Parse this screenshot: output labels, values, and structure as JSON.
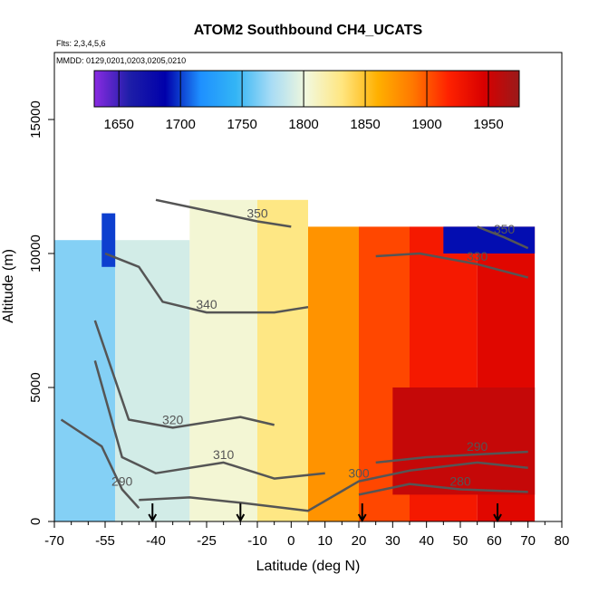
{
  "chart_data": {
    "type": "heatmap",
    "title": "ATOM2 Southbound CH4_UCATS",
    "annotations": {
      "flights": "Flts: 2,3,4,5,6",
      "dates": "MMDD: 0129,0201,0203,0205,0210"
    },
    "xlabel": "Latitude (deg N)",
    "ylabel": "Altitude (m)",
    "xlim": [
      -70,
      80
    ],
    "ylim": [
      0,
      17500
    ],
    "x_ticks": [
      -70,
      -55,
      -40,
      -25,
      -10,
      0,
      10,
      20,
      30,
      40,
      50,
      60,
      70,
      80
    ],
    "x_minor_ticks": [
      -65,
      -60,
      -50,
      -45,
      -35,
      -30,
      -20,
      -15,
      -5,
      5,
      15,
      25,
      35,
      45,
      55,
      65,
      75
    ],
    "y_ticks": [
      0,
      5000,
      10000,
      15000
    ],
    "colorbar": {
      "ticks": [
        1650,
        1700,
        1750,
        1800,
        1850,
        1900,
        1950
      ],
      "range": [
        1630,
        1975
      ],
      "colors": [
        "#8a2be2",
        "#1e1ea8",
        "#0000aa",
        "#1e90ff",
        "#33b5f5",
        "#a8dcf5",
        "#f2f8dc",
        "#ffe680",
        "#ffb000",
        "#ff7800",
        "#ff2200",
        "#d80000",
        "#9a1a1a"
      ]
    },
    "fields": [
      {
        "x_range": [
          -70,
          -52
        ],
        "y_range": [
          0,
          10500
        ],
        "value": 1765
      },
      {
        "x_range": [
          -52,
          -30
        ],
        "y_range": [
          0,
          10500
        ],
        "value": 1790
      },
      {
        "x_range": [
          -30,
          -10
        ],
        "y_range": [
          0,
          12000
        ],
        "value": 1805
      },
      {
        "x_range": [
          -10,
          5
        ],
        "y_range": [
          0,
          12000
        ],
        "value": 1830
      },
      {
        "x_range": [
          5,
          20
        ],
        "y_range": [
          0,
          11000
        ],
        "value": 1875
      },
      {
        "x_range": [
          20,
          35
        ],
        "y_range": [
          0,
          11000
        ],
        "value": 1905
      },
      {
        "x_range": [
          35,
          55
        ],
        "y_range": [
          0,
          11000
        ],
        "value": 1925
      },
      {
        "x_range": [
          55,
          72
        ],
        "y_range": [
          0,
          11000
        ],
        "value": 1940
      },
      {
        "x_range": [
          -56,
          -52
        ],
        "y_range": [
          9500,
          11500
        ],
        "value": 1700
      },
      {
        "x_range": [
          30,
          72
        ],
        "y_range": [
          1000,
          5000
        ],
        "value": 1955
      },
      {
        "x_range": [
          45,
          72
        ],
        "y_range": [
          10000,
          11000
        ],
        "value": 1690
      }
    ],
    "contours": [
      {
        "label": "280",
        "points": [
          [
            20,
            1000
          ],
          [
            35,
            1400
          ],
          [
            50,
            1200
          ],
          [
            70,
            1100
          ]
        ]
      },
      {
        "label": "290",
        "points": [
          [
            -68,
            3800
          ],
          [
            -56,
            2800
          ],
          [
            -50,
            1200
          ],
          [
            -45,
            500
          ]
        ]
      },
      {
        "label": "290",
        "points": [
          [
            25,
            2200
          ],
          [
            40,
            2400
          ],
          [
            55,
            2500
          ],
          [
            70,
            2600
          ]
        ]
      },
      {
        "label": "300",
        "points": [
          [
            -45,
            800
          ],
          [
            -30,
            900
          ],
          [
            -15,
            700
          ],
          [
            5,
            400
          ],
          [
            20,
            1500
          ],
          [
            35,
            1900
          ],
          [
            55,
            2200
          ],
          [
            70,
            2000
          ]
        ]
      },
      {
        "label": "310",
        "points": [
          [
            -58,
            6000
          ],
          [
            -50,
            2400
          ],
          [
            -40,
            1800
          ],
          [
            -20,
            2200
          ],
          [
            -5,
            1600
          ],
          [
            10,
            1800
          ]
        ]
      },
      {
        "label": "320",
        "points": [
          [
            -58,
            7500
          ],
          [
            -48,
            3800
          ],
          [
            -35,
            3500
          ],
          [
            -15,
            3900
          ],
          [
            -5,
            3600
          ]
        ]
      },
      {
        "label": "330",
        "points": [
          [
            25,
            9900
          ],
          [
            38,
            10000
          ],
          [
            55,
            9600
          ],
          [
            70,
            9100
          ]
        ]
      },
      {
        "label": "340",
        "points": [
          [
            -55,
            10000
          ],
          [
            -45,
            9500
          ],
          [
            -38,
            8200
          ],
          [
            -25,
            7800
          ],
          [
            -5,
            7800
          ],
          [
            5,
            8000
          ]
        ]
      },
      {
        "label": "350",
        "points": [
          [
            -40,
            12000
          ],
          [
            -25,
            11600
          ],
          [
            -10,
            11200
          ],
          [
            0,
            11000
          ]
        ]
      },
      {
        "label": "350",
        "points": [
          [
            55,
            11000
          ],
          [
            63,
            10600
          ],
          [
            70,
            10200
          ]
        ]
      }
    ],
    "flight_markers_lat": [
      -41,
      -15,
      21,
      61
    ],
    "grid": false,
    "legend": "top-inside"
  }
}
